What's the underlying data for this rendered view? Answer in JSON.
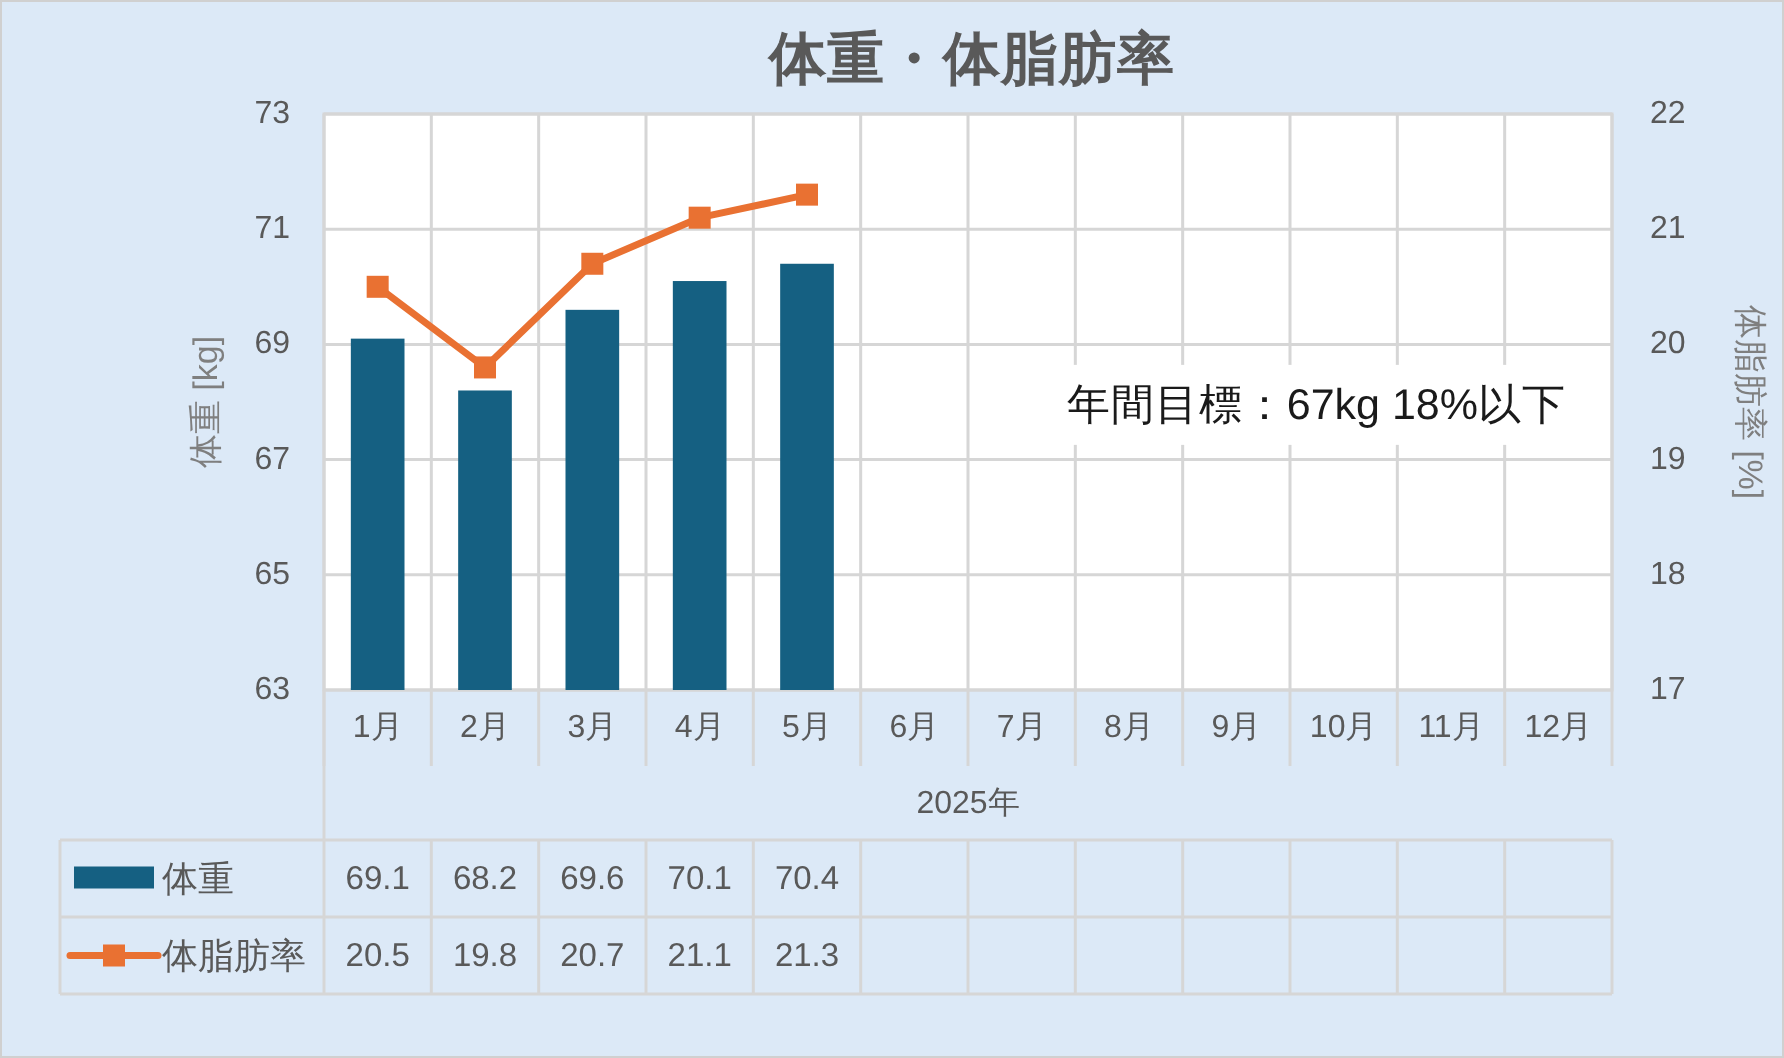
{
  "chart_data": {
    "type": "bar",
    "title": "体重・体脂肪率",
    "xlabel": "2025年",
    "ylabel": "体重 [kg]",
    "y2label": "体脂肪率 [%]",
    "categories": [
      "1月",
      "2月",
      "3月",
      "4月",
      "5月",
      "6月",
      "7月",
      "8月",
      "9月",
      "10月",
      "11月",
      "12月"
    ],
    "series": [
      {
        "name": "体重",
        "color": "#156082",
        "values": [
          69.1,
          68.2,
          69.6,
          70.1,
          70.4,
          null,
          null,
          null,
          null,
          null,
          null,
          null
        ]
      },
      {
        "name": "体脂肪率",
        "type": "line",
        "axis": "y2",
        "color": "#e97132",
        "values": [
          20.5,
          19.8,
          20.7,
          21.1,
          21.3,
          null,
          null,
          null,
          null,
          null,
          null,
          null
        ]
      }
    ],
    "ylim": [
      63,
      73
    ],
    "yticks": [
      63,
      65,
      67,
      69,
      71,
      73
    ],
    "y2lim": [
      17,
      22
    ],
    "y2ticks": [
      17,
      18,
      19,
      20,
      21,
      22
    ],
    "grid": true,
    "legend": "bottom",
    "data_labels": true,
    "marker": "square",
    "line_style": "solid",
    "annotations": [
      "年間目標：67kg 18%以下"
    ]
  }
}
